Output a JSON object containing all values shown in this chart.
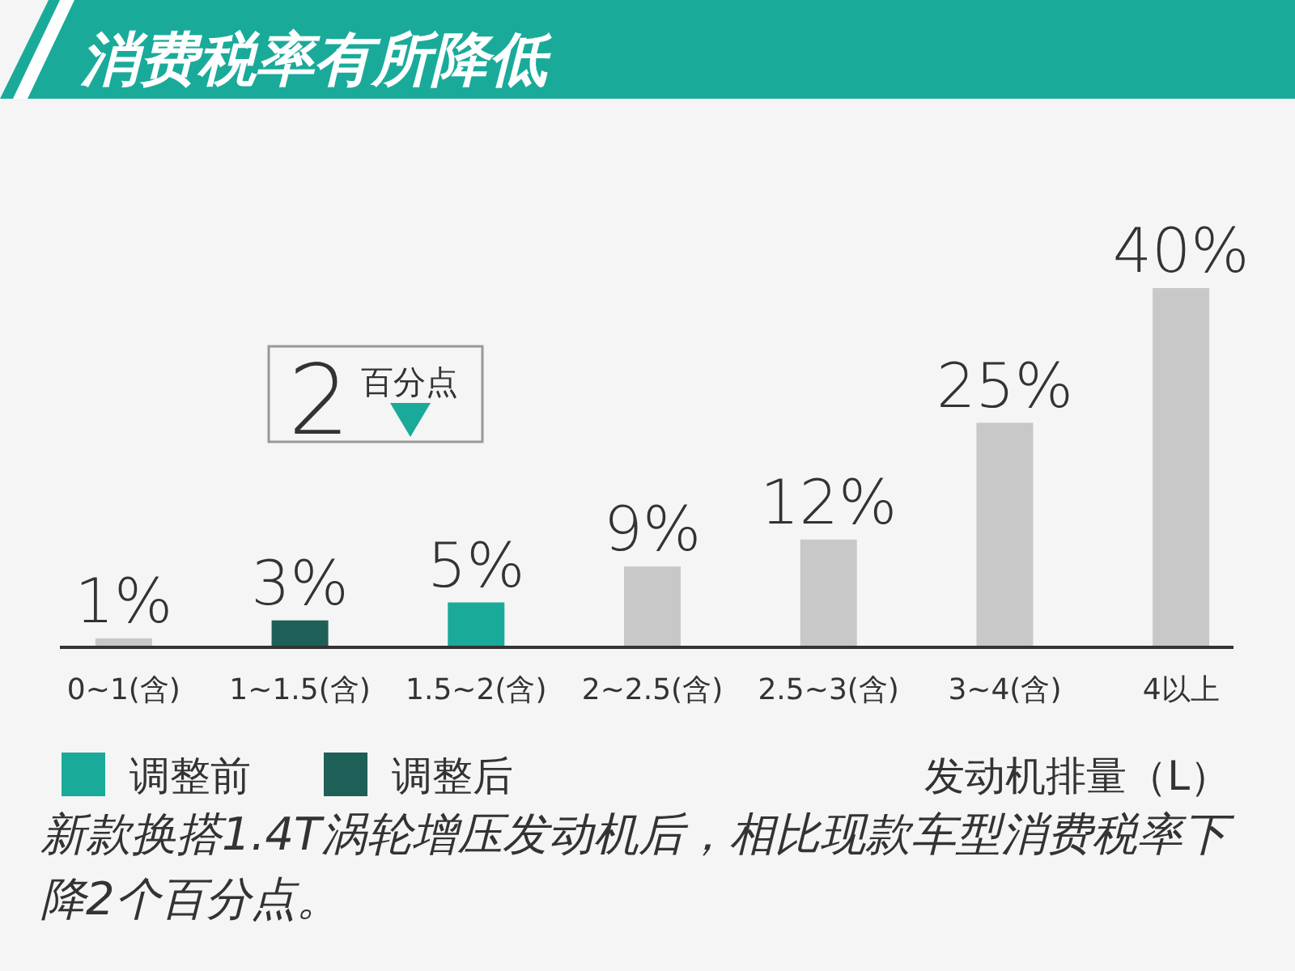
{
  "chart_data": {
    "type": "bar",
    "title": "消费税率有所降低",
    "xlabel": "发动机排量（L）",
    "categories": [
      "0~1(含)",
      "1~1.5(含)",
      "1.5~2(含)",
      "2~2.5(含)",
      "2.5~3(含)",
      "3~4(含)",
      "4以上"
    ],
    "series": [
      {
        "color": "#c8c8c8",
        "values": [
          1,
          null,
          null,
          9,
          12,
          25,
          40
        ],
        "value_labels": [
          "1%",
          null,
          null,
          "9%",
          "12%",
          "25%",
          "40%"
        ]
      },
      {
        "name": "调整前",
        "color": "#1aaa9a",
        "values": [
          null,
          null,
          5,
          null,
          null,
          null,
          null
        ],
        "value_labels": [
          null,
          null,
          "5%",
          null,
          null,
          null,
          null
        ]
      },
      {
        "name": "调整后",
        "color": "#1e5f57",
        "values": [
          null,
          3,
          null,
          null,
          null,
          null,
          null
        ],
        "value_labels": [
          null,
          "3%",
          null,
          null,
          null,
          null,
          null
        ]
      }
    ],
    "legend": "bottom left",
    "annotations": [
      "2",
      "百分点",
      "新款换搭1.4T涡轮增压发动机后，相比现款车型消费税率下降2个百分点。"
    ]
  }
}
